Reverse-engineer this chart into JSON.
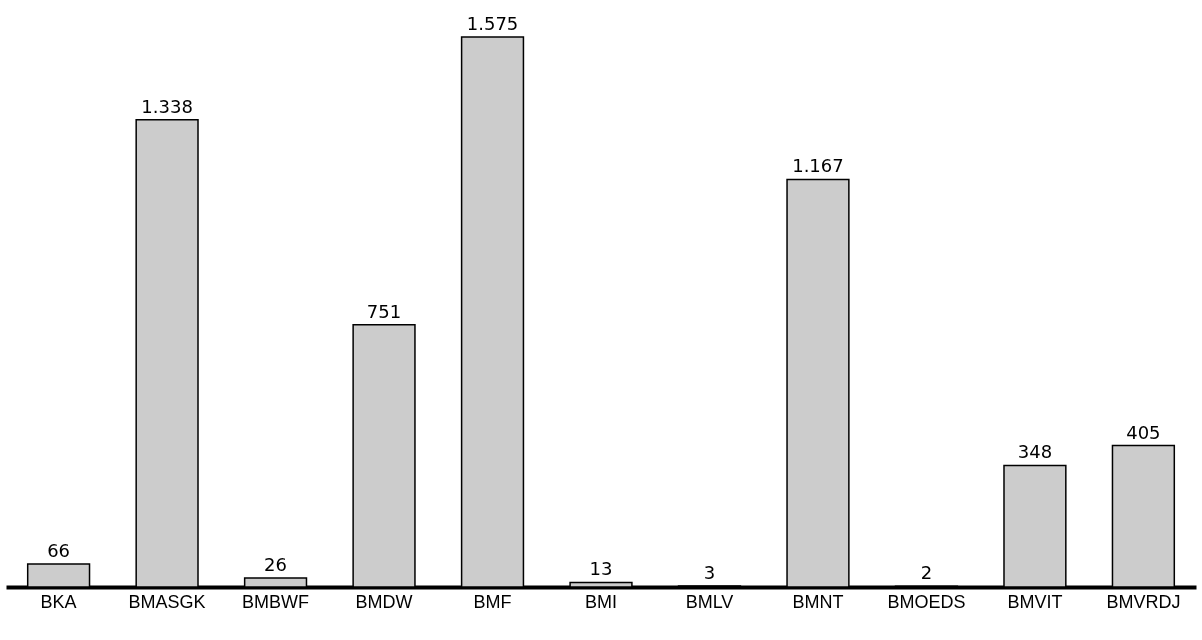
{
  "chart_data": {
    "type": "bar",
    "categories": [
      "BKA",
      "BMASGK",
      "BMBWF",
      "BMDW",
      "BMF",
      "BMI",
      "BMLV",
      "BMNT",
      "BMOEDS",
      "BMVIT",
      "BMVRDJ"
    ],
    "values": [
      66,
      1338,
      26,
      751,
      1575,
      13,
      3,
      1167,
      2,
      348,
      405
    ],
    "value_labels": [
      "66",
      "1.338",
      "26",
      "751",
      "1.575",
      "13",
      "3",
      "1.167",
      "2",
      "348",
      "405"
    ],
    "color": "#cccccc",
    "grid": false,
    "tick_labels": "x"
  }
}
